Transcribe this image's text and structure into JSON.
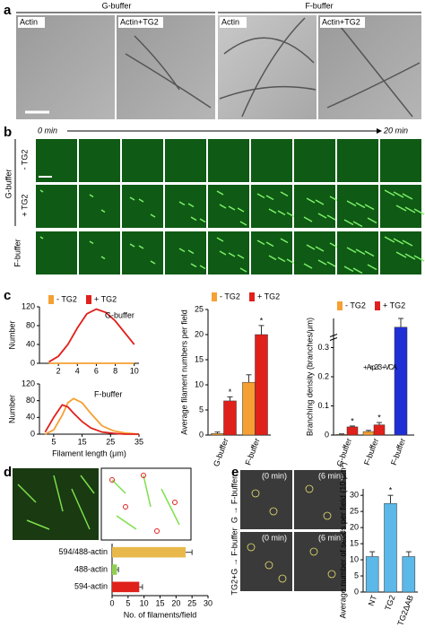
{
  "panels": {
    "a": {
      "label": "a",
      "groups": [
        "G-buffer",
        "F-buffer"
      ],
      "images": [
        "Actin",
        "Actin+TG2",
        "Actin",
        "Actin+TG2"
      ]
    },
    "b": {
      "label": "b",
      "time_start": "0 min",
      "time_end": "20 min",
      "row_group": "G-buffer",
      "rows": [
        "- TG2",
        "+ TG2",
        "F-buffer"
      ]
    },
    "c": {
      "label": "c"
    },
    "d": {
      "label": "d"
    },
    "e": {
      "label": "e",
      "rows": [
        "G → F-buffer",
        "TG2+G → F-buffer"
      ],
      "times": [
        "(0 min)",
        "(6 min)"
      ]
    }
  },
  "chart_data": [
    {
      "type": "line",
      "annotation": "G-buffer",
      "y_label": "Number",
      "x": [
        1,
        2,
        3,
        4,
        5,
        6,
        7,
        8,
        9,
        10
      ],
      "series": [
        {
          "name": "- TG2",
          "color": "#f5a033",
          "values": [
            0,
            0,
            0,
            0,
            0,
            0,
            0,
            0,
            0,
            0
          ]
        },
        {
          "name": "+ TG2",
          "color": "#e0201b",
          "values": [
            3,
            15,
            40,
            75,
            105,
            115,
            108,
            90,
            65,
            40
          ]
        }
      ],
      "xlim": [
        0,
        10.5
      ],
      "xticks": [
        2,
        4,
        6,
        8,
        10
      ],
      "ylim": [
        0,
        120
      ],
      "yticks": [
        0,
        40,
        80,
        120
      ]
    },
    {
      "type": "line",
      "annotation": "F-buffer",
      "y_label": "Number",
      "x_label": "Filament length (μm)",
      "x": [
        2,
        5,
        8,
        10,
        12,
        15,
        18,
        22,
        26,
        30,
        35
      ],
      "series": [
        {
          "color": "#f5a033",
          "values": [
            0,
            10,
            45,
            75,
            85,
            75,
            50,
            20,
            8,
            3,
            0
          ]
        },
        {
          "color": "#e0201b",
          "values": [
            5,
            40,
            70,
            65,
            50,
            30,
            15,
            5,
            2,
            0,
            0
          ]
        }
      ],
      "xlim": [
        0,
        35
      ],
      "xticks": [
        5,
        15,
        25,
        35
      ],
      "ylim": [
        0,
        120
      ],
      "yticks": [
        0,
        40,
        80,
        120
      ]
    },
    {
      "type": "bar",
      "y_label": "Average filament numbers per field",
      "categories": [
        "G-buffer",
        "F-buffer"
      ],
      "series": [
        {
          "name": "- TG2",
          "color": "#f5a033",
          "values": [
            0.3,
            10.5
          ],
          "errors": [
            0.3,
            1.5
          ]
        },
        {
          "name": "+ TG2",
          "color": "#e0201b",
          "values": [
            6.8,
            20
          ],
          "errors": [
            0.8,
            1.8
          ],
          "marks": [
            "*",
            "*"
          ]
        }
      ],
      "ylim": [
        0,
        25
      ],
      "yticks": [
        0,
        5,
        10,
        15,
        20,
        25
      ]
    },
    {
      "type": "bar",
      "y_label": "Branching density (branches/μm)",
      "annotation": "+ Arp2/3 +VCA",
      "categories": [
        "G-buffer",
        "F-buffer",
        "F-buffer"
      ],
      "series": [
        {
          "name": "- TG2",
          "color": "#f5a033",
          "values": [
            0.002,
            0.012,
            null
          ],
          "errors": [
            0.002,
            0.004,
            null
          ]
        },
        {
          "name": "+ TG2",
          "color": "#e0201b",
          "values": [
            0.028,
            0.035,
            null
          ],
          "errors": [
            0.003,
            0.008,
            null
          ],
          "marks": [
            "*",
            "*",
            null
          ]
        },
        {
          "color": "#1f2fd6",
          "values": [
            null,
            null,
            0.37
          ],
          "errors": [
            null,
            null,
            0.03
          ]
        }
      ],
      "ylim": [
        0,
        0.4
      ],
      "yticks": [
        0,
        0.1,
        0.2,
        0.3
      ]
    },
    {
      "type": "hbar",
      "x_label": "No. of filaments/field",
      "categories": [
        "594/488-actin",
        "488-actin",
        "594-actin"
      ],
      "values": [
        23,
        1.5,
        8.5
      ],
      "errors": [
        2,
        0.5,
        1
      ],
      "colors": [
        "#e8b84a",
        "#8fd14f",
        "#e0201b"
      ],
      "xlim": [
        0,
        30
      ],
      "xticks": [
        0,
        5,
        10,
        15,
        20,
        25,
        30
      ]
    },
    {
      "type": "bar",
      "y_label": "Average number of seeds per field (10 μm²)",
      "categories": [
        "NT",
        "TG2",
        "TG2ΔAB"
      ],
      "series": [
        {
          "color": "#5bb8e8",
          "values": [
            11,
            27.5,
            11
          ],
          "errors": [
            1.5,
            2.5,
            1.5
          ],
          "marks": [
            null,
            "*",
            null
          ]
        }
      ],
      "ylim": [
        0,
        32
      ],
      "yticks": [
        0,
        5,
        10,
        15,
        20,
        25,
        30
      ]
    }
  ]
}
